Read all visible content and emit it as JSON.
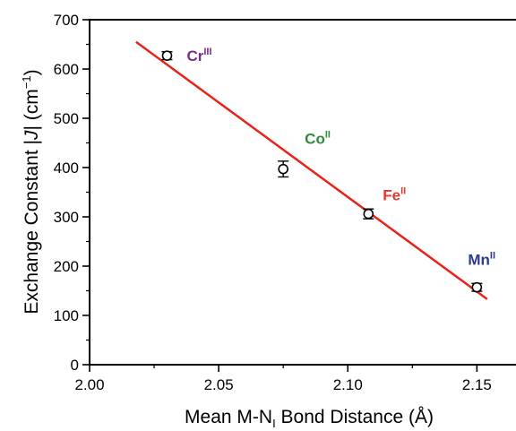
{
  "chart_data": {
    "type": "scatter",
    "xlabel": {
      "prefix": "Mean M-N",
      "subscript": "I",
      "suffix": " Bond Distance (Å)"
    },
    "ylabel": {
      "prefix": "Exchange Constant |",
      "italic": "J",
      "middle": "| (cm",
      "superscript": "−1",
      "suffix": ")"
    },
    "xlim": [
      2.0,
      2.17
    ],
    "ylim": [
      0,
      700
    ],
    "xticks": [
      "2.00",
      "2.05",
      "2.10",
      "2.15"
    ],
    "yticks": [
      "0",
      "100",
      "200",
      "300",
      "400",
      "500",
      "600",
      "700"
    ],
    "grid": false,
    "points": [
      {
        "ion": "Cr",
        "oxidation": "III",
        "x": 2.03,
        "y": 627,
        "err": 8,
        "color": "#7b2d8e"
      },
      {
        "ion": "Co",
        "oxidation": "II",
        "x": 2.075,
        "y": 397,
        "err": 16,
        "color": "#2e8b3a"
      },
      {
        "ion": "Fe",
        "oxidation": "II",
        "x": 2.108,
        "y": 306,
        "err": 10,
        "color": "#e03a2a"
      },
      {
        "ion": "Mn",
        "oxidation": "II",
        "x": 2.15,
        "y": 157,
        "err": 8,
        "color": "#2d3a8e"
      }
    ],
    "fit_line": {
      "x": [
        2.018,
        2.154
      ],
      "y": [
        655,
        133
      ],
      "color": "#e8231a"
    }
  }
}
